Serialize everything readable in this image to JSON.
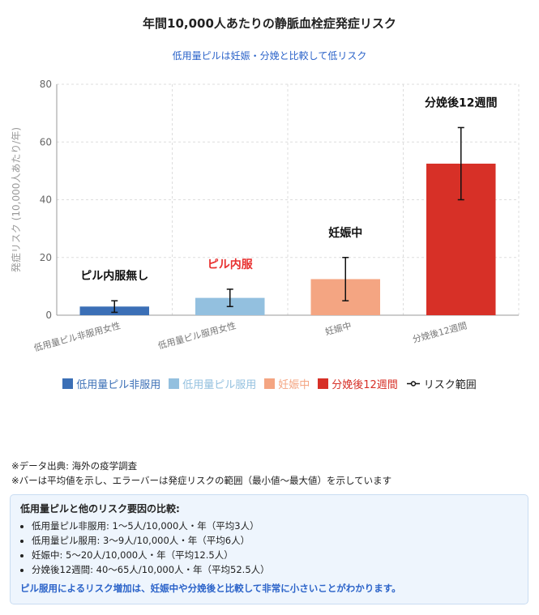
{
  "chart_data": {
    "type": "bar",
    "title": "年間10,000人あたりの静脈血栓症発症リスク",
    "subtitle": "低用量ピルは妊娠・分娩と比較して低リスク",
    "ylabel": "発症リスク (10,000人あたり/年)",
    "ylim": [
      0,
      80
    ],
    "yticks": [
      0,
      20,
      40,
      60,
      80
    ],
    "grid": true,
    "categories": [
      "低用量ピル非服用女性",
      "低用量ピル服用女性",
      "妊娠中",
      "分娩後12週間"
    ],
    "values": [
      3,
      6,
      12.5,
      52.5
    ],
    "error_min": [
      1,
      3,
      5,
      40
    ],
    "error_max": [
      5,
      9,
      20,
      65
    ],
    "colors": [
      "#3b6fb6",
      "#93c0df",
      "#f4a582",
      "#d73027"
    ],
    "annotations": [
      {
        "text": "ピル内服無し",
        "color": "#111111"
      },
      {
        "text": "ピル内服",
        "color": "#e8302f"
      },
      {
        "text": "妊娠中",
        "color": "#111111"
      },
      {
        "text": "分娩後12週間",
        "color": "#111111"
      }
    ],
    "legend": {
      "placement": "bottom",
      "entries": [
        {
          "label": "低用量ピル非服用",
          "color": "#3b6fb6"
        },
        {
          "label": "低用量ピル服用",
          "color": "#93c0df"
        },
        {
          "label": "妊娠中",
          "color": "#f4a582"
        },
        {
          "label": "分娩後12週間",
          "color": "#d73027"
        }
      ],
      "error_label": "リスク範囲"
    }
  },
  "notes": {
    "source": "※データ出典: 海外の疫学調査",
    "explanation": "※バーは平均値を示し、エラーバーは発症リスクの範囲（最小値〜最大値）を示しています"
  },
  "panel": {
    "title": "低用量ピルと他のリスク要因の比較:",
    "items": [
      "低用量ピル非服用: 1〜5人/10,000人・年（平均3人）",
      "低用量ピル服用: 3〜9人/10,000人・年（平均6人）",
      "妊娠中: 5〜20人/10,000人・年（平均12.5人）",
      "分娩後12週間: 40〜65人/10,000人・年（平均52.5人）"
    ],
    "conclusion": "ピル服用によるリスク増加は、妊娠中や分娩後と比較して非常に小さいことがわかります。"
  }
}
